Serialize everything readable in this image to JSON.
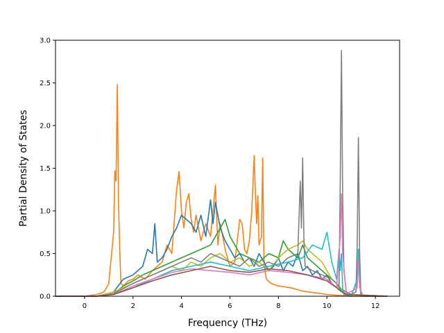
{
  "chart_data": {
    "type": "line",
    "title": "",
    "xlabel": "Frequency (THz)",
    "ylabel": "Partial Density of States",
    "xlim": [
      -1.2,
      13.0
    ],
    "ylim": [
      0.0,
      3.0
    ],
    "xticks": [
      0,
      2,
      4,
      6,
      8,
      10,
      12
    ],
    "xtick_labels": [
      "0",
      "2",
      "4",
      "6",
      "8",
      "10",
      "12"
    ],
    "yticks": [
      0.0,
      0.5,
      1.0,
      1.5,
      2.0,
      2.5,
      3.0
    ],
    "ytick_labels": [
      "0.0",
      "0.5",
      "1.0",
      "1.5",
      "2.0",
      "2.5",
      "3.0"
    ],
    "grid": false,
    "legend": "none",
    "series": [
      {
        "color": "#ff7f0e",
        "x": [
          -1.2,
          0.0,
          0.5,
          0.8,
          1.0,
          1.1,
          1.2,
          1.25,
          1.3,
          1.35,
          1.4,
          1.45,
          1.5,
          1.6,
          1.8,
          2.0,
          2.2,
          2.5,
          2.8,
          3.0,
          3.2,
          3.4,
          3.6,
          3.8,
          3.9,
          4.0,
          4.1,
          4.2,
          4.3,
          4.4,
          4.5,
          4.6,
          4.8,
          5.0,
          5.2,
          5.4,
          5.5,
          5.6,
          5.8,
          6.0,
          6.2,
          6.4,
          6.5,
          6.6,
          6.7,
          6.8,
          6.9,
          7.0,
          7.05,
          7.1,
          7.15,
          7.2,
          7.3,
          7.35,
          7.4,
          7.45,
          7.5,
          7.7,
          8.0,
          8.5,
          9.0,
          9.5,
          10.0,
          10.5,
          11.0,
          12.5
        ],
        "y": [
          0.0,
          0.0,
          0.02,
          0.05,
          0.15,
          0.45,
          0.75,
          1.47,
          1.35,
          2.48,
          1.1,
          0.55,
          0.15,
          0.12,
          0.18,
          0.2,
          0.25,
          0.2,
          0.3,
          0.35,
          0.4,
          0.6,
          0.5,
          1.25,
          1.46,
          1.0,
          0.8,
          1.1,
          1.2,
          0.9,
          0.75,
          0.95,
          0.65,
          0.85,
          0.7,
          1.3,
          0.6,
          0.85,
          0.55,
          0.35,
          0.4,
          0.9,
          0.85,
          0.55,
          0.5,
          0.65,
          1.0,
          1.65,
          1.2,
          0.85,
          1.18,
          0.6,
          0.7,
          1.62,
          0.45,
          0.3,
          0.2,
          0.15,
          0.12,
          0.1,
          0.06,
          0.04,
          0.02,
          0.01,
          0.0,
          0.0
        ]
      },
      {
        "color": "#1f77b4",
        "x": [
          -1.2,
          0.5,
          1.2,
          1.6,
          2.0,
          2.4,
          2.6,
          2.8,
          2.9,
          3.0,
          3.2,
          3.4,
          3.6,
          3.8,
          4.0,
          4.2,
          4.4,
          4.6,
          4.8,
          5.0,
          5.2,
          5.3,
          5.4,
          5.6,
          5.8,
          6.0,
          6.2,
          6.4,
          6.6,
          6.8,
          7.0,
          7.2,
          7.4,
          7.6,
          7.8,
          8.0,
          8.2,
          8.4,
          8.6,
          8.8,
          9.0,
          9.2,
          9.4,
          9.6,
          9.8,
          10.0,
          10.2,
          10.4,
          10.6,
          10.8,
          12.5
        ],
        "y": [
          0.0,
          0.0,
          0.05,
          0.2,
          0.25,
          0.35,
          0.55,
          0.5,
          0.85,
          0.4,
          0.45,
          0.55,
          0.7,
          0.8,
          0.95,
          0.9,
          0.85,
          0.75,
          0.95,
          0.7,
          1.13,
          0.85,
          1.1,
          0.8,
          0.65,
          0.55,
          0.45,
          0.5,
          0.4,
          0.45,
          0.35,
          0.5,
          0.4,
          0.3,
          0.35,
          0.45,
          0.3,
          0.4,
          0.35,
          0.5,
          0.3,
          0.35,
          0.25,
          0.3,
          0.2,
          0.25,
          0.15,
          0.1,
          0.05,
          0.02,
          0.0
        ]
      },
      {
        "color": "#2ca02c",
        "x": [
          -1.2,
          0.5,
          1.2,
          1.6,
          2.0,
          2.4,
          2.8,
          3.2,
          3.6,
          4.0,
          4.4,
          4.8,
          5.2,
          5.6,
          5.8,
          6.0,
          6.2,
          6.4,
          6.8,
          7.2,
          7.6,
          8.0,
          8.2,
          8.4,
          8.6,
          8.8,
          9.0,
          9.2,
          9.4,
          9.6,
          9.8,
          10.0,
          10.2,
          10.4,
          10.6,
          11.0,
          12.5
        ],
        "y": [
          0.0,
          0.0,
          0.03,
          0.12,
          0.18,
          0.25,
          0.3,
          0.35,
          0.4,
          0.45,
          0.5,
          0.55,
          0.6,
          0.8,
          0.9,
          0.7,
          0.6,
          0.5,
          0.45,
          0.4,
          0.5,
          0.45,
          0.65,
          0.55,
          0.5,
          0.45,
          0.6,
          0.45,
          0.4,
          0.35,
          0.3,
          0.25,
          0.2,
          0.15,
          0.08,
          0.02,
          0.0
        ]
      },
      {
        "color": "#bcbd22",
        "x": [
          -1.2,
          0.5,
          1.2,
          1.6,
          2.0,
          2.4,
          2.8,
          3.2,
          3.6,
          4.0,
          4.4,
          4.8,
          5.2,
          5.6,
          6.0,
          6.4,
          6.8,
          7.2,
          7.6,
          8.0,
          8.4,
          8.8,
          9.0,
          9.2,
          9.4,
          9.6,
          9.8,
          10.0,
          10.2,
          10.4,
          10.6,
          11.0,
          12.5
        ],
        "y": [
          0.0,
          0.0,
          0.05,
          0.1,
          0.15,
          0.2,
          0.25,
          0.3,
          0.35,
          0.3,
          0.4,
          0.35,
          0.45,
          0.5,
          0.4,
          0.45,
          0.35,
          0.4,
          0.3,
          0.45,
          0.55,
          0.6,
          0.65,
          0.55,
          0.5,
          0.45,
          0.4,
          0.3,
          0.2,
          0.15,
          0.05,
          0.02,
          0.0
        ]
      },
      {
        "color": "#7f7f7f",
        "x": [
          -1.2,
          0.5,
          1.2,
          2.0,
          2.4,
          2.8,
          3.2,
          3.6,
          4.0,
          4.4,
          4.8,
          5.2,
          5.6,
          6.0,
          6.4,
          6.8,
          7.2,
          7.6,
          8.0,
          8.4,
          8.8,
          8.9,
          8.95,
          9.0,
          9.05,
          9.1,
          9.4,
          9.8,
          10.2,
          10.4,
          10.5,
          10.55,
          10.6,
          10.65,
          10.7,
          10.8,
          11.0,
          11.2,
          11.25,
          11.3,
          11.35,
          11.4,
          11.5,
          12.5
        ],
        "y": [
          0.0,
          0.0,
          0.03,
          0.15,
          0.2,
          0.25,
          0.3,
          0.35,
          0.4,
          0.45,
          0.4,
          0.5,
          0.45,
          0.4,
          0.35,
          0.45,
          0.35,
          0.4,
          0.35,
          0.45,
          0.5,
          1.35,
          0.8,
          1.62,
          0.7,
          0.35,
          0.3,
          0.25,
          0.2,
          0.15,
          0.1,
          1.3,
          2.88,
          1.2,
          0.3,
          0.05,
          0.02,
          0.05,
          0.6,
          1.86,
          0.5,
          0.05,
          0.0,
          0.0
        ]
      },
      {
        "color": "#17becf",
        "x": [
          -1.2,
          0.5,
          1.2,
          2.0,
          2.8,
          3.6,
          4.4,
          5.2,
          6.0,
          6.8,
          7.6,
          8.4,
          9.0,
          9.4,
          9.8,
          10.0,
          10.2,
          10.4,
          10.5,
          10.55,
          10.6,
          10.65,
          10.7,
          11.0,
          11.25,
          11.3,
          11.35,
          11.4,
          12.5
        ],
        "y": [
          0.0,
          0.0,
          0.02,
          0.1,
          0.2,
          0.3,
          0.35,
          0.4,
          0.35,
          0.3,
          0.35,
          0.4,
          0.45,
          0.6,
          0.55,
          0.75,
          0.4,
          0.2,
          0.55,
          0.3,
          0.5,
          0.1,
          0.02,
          0.0,
          0.2,
          0.55,
          0.2,
          0.0,
          0.0
        ]
      },
      {
        "color": "#e377c2",
        "x": [
          -1.2,
          0.5,
          1.2,
          2.0,
          2.8,
          3.6,
          4.4,
          5.2,
          6.0,
          6.8,
          7.6,
          8.4,
          9.2,
          10.0,
          10.4,
          10.55,
          10.6,
          10.65,
          10.8,
          11.25,
          11.3,
          11.35,
          11.5,
          12.5
        ],
        "y": [
          0.0,
          0.0,
          0.02,
          0.12,
          0.2,
          0.28,
          0.32,
          0.3,
          0.28,
          0.25,
          0.3,
          0.28,
          0.25,
          0.2,
          0.1,
          0.7,
          1.2,
          0.5,
          0.02,
          0.1,
          0.42,
          0.1,
          0.0,
          0.0
        ]
      },
      {
        "color": "#8c564b",
        "x": [
          -1.2,
          0.5,
          1.2,
          2.0,
          2.8,
          3.6,
          4.4,
          5.2,
          6.0,
          6.8,
          7.6,
          8.4,
          9.2,
          10.0,
          10.4,
          10.8,
          12.5
        ],
        "y": [
          0.0,
          0.0,
          0.02,
          0.1,
          0.18,
          0.25,
          0.3,
          0.35,
          0.3,
          0.28,
          0.32,
          0.3,
          0.25,
          0.18,
          0.1,
          0.02,
          0.0
        ]
      }
    ]
  }
}
